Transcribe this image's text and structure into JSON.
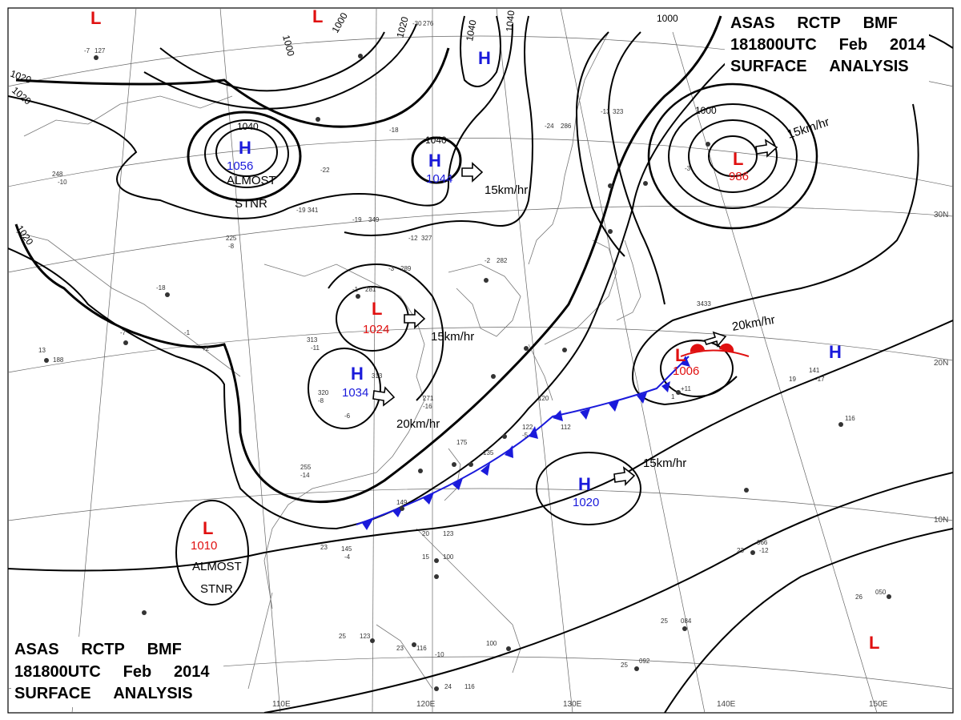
{
  "header": {
    "top_right": [
      "ASAS  RCTP  BMF",
      "181800UTC  Feb  2014",
      "SURFACE  ANALYSIS"
    ],
    "bottom_left": [
      "ASAS  RCTP  BMF",
      "181800UTC  Feb  2014",
      "SURFACE  ANALYSIS"
    ]
  },
  "colors": {
    "high": "#1a1adb",
    "low": "#e01010",
    "cold_front": "#1a1adb",
    "warm_front": "#e01010",
    "isobar": "#000000"
  },
  "pressure_systems": [
    {
      "type": "H",
      "pressure": "1056",
      "remark": [
        "ALMOST",
        "STNR"
      ]
    },
    {
      "type": "H",
      "pressure": "1044",
      "motion": "15km/hr"
    },
    {
      "type": "H",
      "pressure": "1034",
      "motion": "20km/hr"
    },
    {
      "type": "H",
      "pressure": "1020",
      "motion": "15km/hr"
    },
    {
      "type": "H",
      "pressure": ""
    },
    {
      "type": "H",
      "pressure": ""
    },
    {
      "type": "L",
      "pressure": "1024",
      "motion": "15km/hr"
    },
    {
      "type": "L",
      "pressure": "986",
      "motion": "15km/hr"
    },
    {
      "type": "L",
      "pressure": "1006",
      "motion": "20km/hr"
    },
    {
      "type": "L",
      "pressure": "1010",
      "remark": [
        "ALMOST",
        "STNR"
      ]
    },
    {
      "type": "L",
      "pressure": ""
    },
    {
      "type": "L",
      "pressure": ""
    },
    {
      "type": "L",
      "pressure": ""
    }
  ],
  "isobar_labels": [
    "1000",
    "1000",
    "1020",
    "1040",
    "1040",
    "1020",
    "1000",
    "1020",
    "1040",
    "1020",
    "1040",
    "1020",
    "1000"
  ],
  "grid": {
    "longitudes": [
      "110E",
      "120E",
      "130E",
      "140E",
      "150E"
    ],
    "latitudes": [
      "30N",
      "20N",
      "10N"
    ]
  },
  "station_samples": [
    "-7",
    "127",
    "-30",
    "276",
    "-24",
    "286",
    "-13",
    "323",
    "-19",
    "341",
    "-19",
    "349",
    "-12",
    "327",
    "-3",
    "289",
    "-2",
    "282",
    "-1",
    "281",
    "313",
    "-11",
    "320",
    "-8",
    "271",
    "-16",
    "175",
    "135",
    "149",
    "122",
    "-5",
    "120",
    "112",
    "19",
    "141",
    "-17",
    "116",
    "23",
    "066",
    "-12",
    "23",
    "145",
    "-4",
    "20",
    "123",
    "15",
    "100",
    "25",
    "123",
    "23",
    "116",
    "24",
    "116",
    "25",
    "092",
    "25",
    "084",
    "26",
    "050",
    "255",
    "-14",
    "100",
    "-10",
    "-8",
    "225",
    "13",
    "188",
    "-18",
    "-7",
    "-1",
    "+2",
    "-6",
    "313",
    "1",
    "+11",
    "-22",
    "-18",
    "248",
    "-10",
    "-3",
    "3433"
  ]
}
